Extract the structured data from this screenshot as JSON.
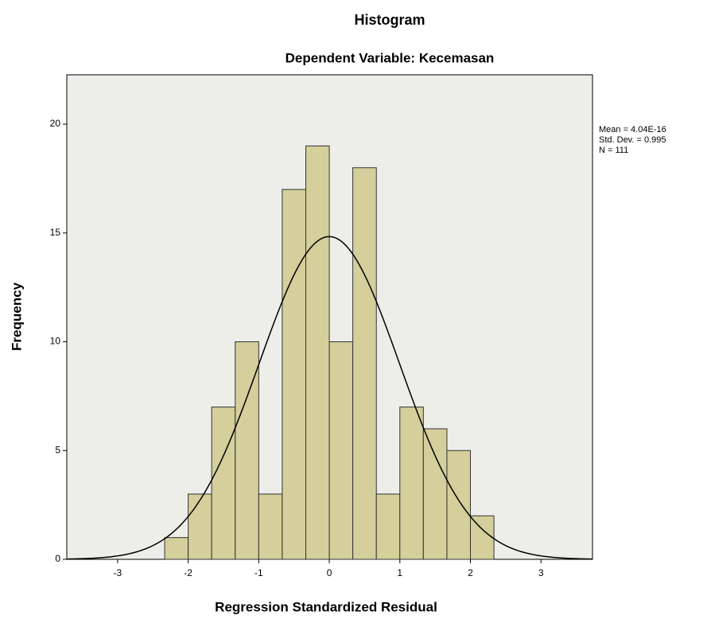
{
  "chart_data": {
    "type": "histogram",
    "title": "Histogram",
    "subtitle": "Dependent Variable: Kecemasan",
    "x_label": "Regression Standardized Residual",
    "y_label": "Frequency",
    "bins": [
      -2.333,
      -2.0,
      -1.667,
      -1.333,
      -1.0,
      -0.667,
      -0.333,
      0,
      0.333,
      0.667,
      1.0,
      1.333,
      1.667,
      2.0,
      2.333
    ],
    "values": [
      1,
      3,
      7,
      10,
      3,
      17,
      19,
      10,
      18,
      3,
      7,
      6,
      5,
      2
    ],
    "color": "#d4cf9b",
    "xlim": [
      -3.72,
      3.73
    ],
    "xticks": [
      -3,
      -2,
      -1,
      0,
      1,
      2,
      3
    ],
    "ylim": [
      0,
      22.27
    ],
    "yticks": [
      0,
      5,
      10,
      15,
      20
    ],
    "stats": [
      {
        "value": 4.04e-16,
        "label": "Mean = 4.04E-16"
      },
      {
        "value": 0.995,
        "label": "Std. Dev. = 0.995"
      },
      {
        "value": 111,
        "label": "N = 111"
      }
    ],
    "normal_curve": true
  }
}
